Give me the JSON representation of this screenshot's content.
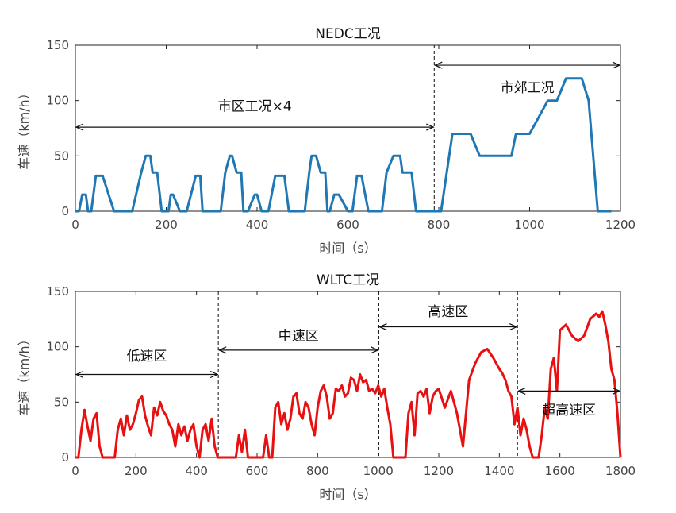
{
  "chart_data": [
    {
      "type": "line",
      "title": "NEDC工况",
      "xlabel": "时间（s）",
      "ylabel": "车速（km/h）",
      "xlim": [
        0,
        1200
      ],
      "ylim": [
        0,
        150
      ],
      "xticks": [
        0,
        200,
        400,
        600,
        800,
        1000,
        1200
      ],
      "yticks": [
        0,
        50,
        100,
        150
      ],
      "color": "#1f77b4",
      "series": [
        {
          "x": [
            0,
            8,
            15,
            23,
            28,
            35,
            45,
            60,
            85,
            95,
            110,
            120,
            125,
            145,
            155,
            165,
            170,
            180,
            190,
            205,
            210,
            215,
            230,
            245,
            265,
            275,
            280,
            300,
            315,
            320,
            330,
            340,
            345,
            355,
            365,
            370,
            380,
            395,
            400,
            410,
            425,
            440,
            460,
            470,
            475,
            495,
            505,
            515,
            520,
            530,
            540,
            550,
            555,
            560,
            570,
            580,
            600,
            610,
            620,
            630,
            645,
            655,
            665,
            675,
            685,
            700,
            715,
            720,
            740,
            750,
            760,
            770,
            785,
            795,
            805,
            830,
            870,
            890,
            895,
            960,
            970,
            1000,
            1040,
            1060,
            1080,
            1100,
            1115,
            1130,
            1150,
            1170,
            1180
          ],
          "y": [
            0,
            0,
            15,
            15,
            0,
            0,
            32,
            32,
            0,
            0,
            0,
            0,
            0,
            35,
            50,
            50,
            35,
            35,
            0,
            0,
            15,
            15,
            0,
            0,
            32,
            32,
            0,
            0,
            0,
            0,
            35,
            50,
            50,
            35,
            35,
            0,
            0,
            15,
            15,
            0,
            0,
            32,
            32,
            0,
            0,
            0,
            0,
            35,
            50,
            50,
            35,
            35,
            0,
            0,
            15,
            15,
            0,
            0,
            32,
            32,
            0,
            0,
            0,
            0,
            35,
            50,
            50,
            35,
            35,
            0,
            0,
            0,
            0,
            0,
            0,
            70,
            70,
            50,
            50,
            50,
            70,
            70,
            100,
            100,
            120,
            120,
            120,
            100,
            0,
            0,
            0
          ]
        }
      ],
      "annotations": [
        {
          "text": "市区工况×4",
          "x_from": 0,
          "x_to": 790,
          "y": 76,
          "text_x": 395,
          "text_y": 95
        },
        {
          "text": "市郊工况",
          "x_from": 790,
          "x_to": 1200,
          "y": 132,
          "text_x": 995,
          "text_y": 112
        }
      ],
      "dividers": [
        790
      ]
    },
    {
      "type": "line",
      "title": "WLTC工况",
      "xlabel": "时间（s）",
      "ylabel": "车速（km/h）",
      "xlim": [
        0,
        1800
      ],
      "ylim": [
        0,
        150
      ],
      "xticks": [
        0,
        200,
        400,
        600,
        800,
        1000,
        1200,
        1400,
        1600,
        1800
      ],
      "yticks": [
        0,
        50,
        100,
        150
      ],
      "color": "#e81010",
      "series": [
        {
          "x": [
            0,
            10,
            20,
            30,
            40,
            50,
            60,
            70,
            80,
            90,
            100,
            110,
            120,
            130,
            140,
            150,
            160,
            170,
            180,
            190,
            200,
            210,
            220,
            230,
            240,
            250,
            260,
            270,
            280,
            290,
            300,
            310,
            320,
            330,
            340,
            350,
            360,
            370,
            380,
            390,
            400,
            410,
            420,
            430,
            440,
            450,
            460,
            470,
            480,
            490,
            500,
            510,
            520,
            530,
            540,
            550,
            560,
            570,
            580,
            590,
            600,
            610,
            620,
            630,
            640,
            650,
            660,
            670,
            680,
            690,
            700,
            710,
            720,
            730,
            740,
            750,
            760,
            770,
            780,
            790,
            800,
            810,
            820,
            830,
            840,
            850,
            860,
            870,
            880,
            890,
            900,
            910,
            920,
            930,
            940,
            950,
            960,
            970,
            980,
            990,
            1000,
            1010,
            1020,
            1030,
            1040,
            1050,
            1060,
            1070,
            1080,
            1090,
            1100,
            1110,
            1120,
            1130,
            1140,
            1150,
            1160,
            1170,
            1180,
            1190,
            1200,
            1220,
            1240,
            1260,
            1280,
            1300,
            1320,
            1340,
            1360,
            1380,
            1400,
            1410,
            1420,
            1430,
            1440,
            1450,
            1460,
            1470,
            1480,
            1490,
            1500,
            1510,
            1520,
            1530,
            1540,
            1550,
            1560,
            1570,
            1580,
            1590,
            1600,
            1620,
            1640,
            1660,
            1680,
            1700,
            1720,
            1730,
            1740,
            1750,
            1760,
            1770,
            1780,
            1790,
            1800
          ],
          "y": [
            0,
            0,
            25,
            43,
            28,
            15,
            35,
            40,
            10,
            0,
            0,
            0,
            0,
            0,
            25,
            35,
            20,
            38,
            25,
            30,
            40,
            52,
            55,
            38,
            28,
            20,
            45,
            38,
            50,
            42,
            38,
            30,
            25,
            10,
            30,
            20,
            28,
            15,
            25,
            30,
            10,
            0,
            25,
            30,
            15,
            35,
            10,
            0,
            0,
            0,
            0,
            0,
            0,
            0,
            20,
            5,
            25,
            0,
            0,
            0,
            0,
            0,
            0,
            20,
            0,
            0,
            45,
            50,
            30,
            40,
            25,
            35,
            55,
            58,
            40,
            35,
            50,
            45,
            30,
            20,
            45,
            60,
            65,
            55,
            35,
            40,
            62,
            60,
            65,
            55,
            58,
            72,
            70,
            60,
            75,
            68,
            70,
            60,
            62,
            58,
            65,
            55,
            62,
            45,
            30,
            0,
            0,
            0,
            0,
            0,
            40,
            50,
            20,
            58,
            60,
            55,
            62,
            40,
            55,
            60,
            62,
            45,
            60,
            40,
            10,
            70,
            85,
            95,
            98,
            90,
            80,
            76,
            70,
            60,
            55,
            30,
            45,
            20,
            35,
            25,
            10,
            0,
            0,
            0,
            20,
            45,
            35,
            80,
            90,
            60,
            115,
            120,
            110,
            105,
            110,
            125,
            130,
            127,
            132,
            120,
            105,
            80,
            70,
            40,
            0
          ]
        }
      ],
      "annotations": [
        {
          "text": "低速区",
          "x_from": 0,
          "x_to": 472,
          "y": 75,
          "text_x": 236,
          "text_y": 92
        },
        {
          "text": "中速区",
          "x_from": 472,
          "x_to": 1002,
          "y": 97,
          "text_x": 737,
          "text_y": 110
        },
        {
          "text": "高速区",
          "x_from": 1002,
          "x_to": 1460,
          "y": 118,
          "text_x": 1231,
          "text_y": 132
        },
        {
          "text": "超高速区",
          "x_from": 1460,
          "x_to": 1800,
          "y": 60,
          "text_x": 1630,
          "text_y": 43
        }
      ],
      "dividers": [
        472,
        1002,
        1460
      ]
    }
  ]
}
